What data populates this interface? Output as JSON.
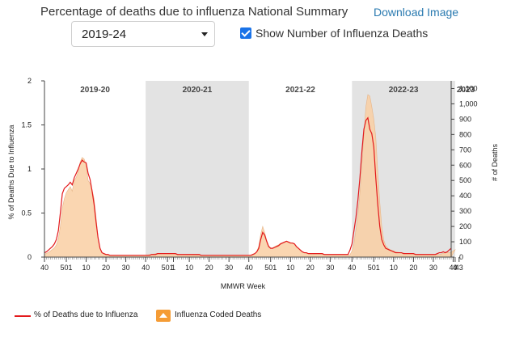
{
  "header": {
    "title": "Percentage of deaths due to influenza National Summary",
    "download_label": "Download Image"
  },
  "season_select": {
    "value": "2019-24"
  },
  "show_deaths_checkbox": {
    "label": "Show Number of Influenza Deaths",
    "checked": true
  },
  "legend": {
    "pct_label": "% of Deaths due to Influenza",
    "deaths_label": "Influenza Coded Deaths"
  },
  "colors": {
    "pct_line": "#e31a1c",
    "deaths_fill": "#f9cfa3",
    "deaths_fill_dark": "#e7b588",
    "shade": "#e3e3e3",
    "legend_swatch": "#f59c35"
  },
  "chart_data": {
    "type": "line",
    "xlabel": "MMWR Week",
    "ylabel": "% of Deaths Due to Influenza",
    "y2label": "# of Deaths",
    "ylim": [
      0,
      2
    ],
    "y2lim": [
      0,
      1150
    ],
    "y_ticks": [
      "0",
      "0.5",
      "1",
      "1.5",
      "2"
    ],
    "y2_ticks": [
      "0",
      "100",
      "200",
      "300",
      "400",
      "500",
      "600",
      "700",
      "800",
      "900",
      "1,000",
      "1,100"
    ],
    "seasons": [
      {
        "label": "2019-20",
        "shaded": false,
        "start_index": 0,
        "end_index": 51
      },
      {
        "label": "2020-21",
        "shaded": true,
        "start_index": 51,
        "end_index": 103
      },
      {
        "label": "2021-22",
        "shaded": false,
        "start_index": 103,
        "end_index": 155
      },
      {
        "label": "2022-23",
        "shaded": true,
        "start_index": 155,
        "end_index": 207
      },
      {
        "label": "2023",
        "shaded": false,
        "start_index": 207,
        "end_index": 210
      }
    ],
    "x_ticks": [
      {
        "index": 0,
        "label": "40"
      },
      {
        "index": 11,
        "label": "501"
      },
      {
        "index": 21,
        "label": "10"
      },
      {
        "index": 31,
        "label": "20"
      },
      {
        "index": 41,
        "label": "30"
      },
      {
        "index": 51,
        "label": "40"
      },
      {
        "index": 62,
        "label": "501"
      },
      {
        "index": 65,
        "label": "1"
      },
      {
        "index": 73,
        "label": "10"
      },
      {
        "index": 83,
        "label": "20"
      },
      {
        "index": 93,
        "label": "30"
      },
      {
        "index": 103,
        "label": "40"
      },
      {
        "index": 114,
        "label": "501"
      },
      {
        "index": 124,
        "label": "10"
      },
      {
        "index": 134,
        "label": "20"
      },
      {
        "index": 144,
        "label": "30"
      },
      {
        "index": 155,
        "label": "40"
      },
      {
        "index": 166,
        "label": "501"
      },
      {
        "index": 176,
        "label": "10"
      },
      {
        "index": 186,
        "label": "20"
      },
      {
        "index": 196,
        "label": "30"
      },
      {
        "index": 206,
        "label": "40"
      },
      {
        "index": 207,
        "label": "4"
      },
      {
        "index": 209,
        "label": "43"
      }
    ],
    "pct_series": [
      0.05,
      0.06,
      0.08,
      0.1,
      0.12,
      0.15,
      0.2,
      0.3,
      0.5,
      0.72,
      0.78,
      0.8,
      0.82,
      0.85,
      0.82,
      0.9,
      0.95,
      1.0,
      1.06,
      1.1,
      1.08,
      1.07,
      0.95,
      0.88,
      0.75,
      0.6,
      0.4,
      0.22,
      0.1,
      0.05,
      0.04,
      0.03,
      0.03,
      0.02,
      0.02,
      0.02,
      0.02,
      0.02,
      0.02,
      0.02,
      0.02,
      0.02,
      0.02,
      0.02,
      0.02,
      0.02,
      0.02,
      0.02,
      0.02,
      0.02,
      0.02,
      0.02,
      0.02,
      0.02,
      0.03,
      0.03,
      0.03,
      0.04,
      0.04,
      0.04,
      0.04,
      0.04,
      0.04,
      0.04,
      0.04,
      0.04,
      0.04,
      0.03,
      0.03,
      0.03,
      0.03,
      0.03,
      0.03,
      0.03,
      0.03,
      0.03,
      0.03,
      0.03,
      0.03,
      0.02,
      0.02,
      0.02,
      0.02,
      0.02,
      0.02,
      0.02,
      0.02,
      0.02,
      0.02,
      0.02,
      0.02,
      0.02,
      0.02,
      0.02,
      0.02,
      0.02,
      0.02,
      0.02,
      0.02,
      0.02,
      0.02,
      0.02,
      0.02,
      0.02,
      0.02,
      0.03,
      0.04,
      0.06,
      0.1,
      0.2,
      0.28,
      0.25,
      0.18,
      0.12,
      0.1,
      0.1,
      0.11,
      0.12,
      0.13,
      0.15,
      0.16,
      0.17,
      0.18,
      0.17,
      0.16,
      0.16,
      0.15,
      0.12,
      0.1,
      0.08,
      0.06,
      0.05,
      0.05,
      0.04,
      0.04,
      0.04,
      0.04,
      0.04,
      0.04,
      0.04,
      0.04,
      0.03,
      0.03,
      0.03,
      0.03,
      0.03,
      0.03,
      0.03,
      0.03,
      0.03,
      0.03,
      0.03,
      0.03,
      0.03,
      0.08,
      0.15,
      0.3,
      0.45,
      0.65,
      0.9,
      1.2,
      1.45,
      1.55,
      1.58,
      1.45,
      1.4,
      1.25,
      0.9,
      0.6,
      0.35,
      0.2,
      0.14,
      0.1,
      0.09,
      0.08,
      0.07,
      0.06,
      0.05,
      0.05,
      0.05,
      0.05,
      0.04,
      0.04,
      0.04,
      0.04,
      0.04,
      0.04,
      0.03,
      0.03,
      0.03,
      0.03,
      0.03,
      0.03,
      0.03,
      0.03,
      0.03,
      0.03,
      0.03,
      0.04,
      0.05,
      0.05,
      0.06,
      0.05,
      0.06,
      0.08,
      0.1
    ],
    "deaths_series": [
      20,
      25,
      30,
      40,
      50,
      60,
      80,
      120,
      200,
      320,
      380,
      420,
      440,
      460,
      430,
      500,
      520,
      560,
      620,
      650,
      640,
      600,
      500,
      480,
      440,
      380,
      260,
      130,
      60,
      30,
      20,
      15,
      12,
      10,
      10,
      10,
      10,
      10,
      10,
      10,
      10,
      10,
      10,
      10,
      10,
      10,
      10,
      10,
      10,
      10,
      10,
      12,
      14,
      16,
      18,
      20,
      22,
      24,
      25,
      25,
      25,
      25,
      25,
      24,
      24,
      23,
      22,
      20,
      18,
      17,
      16,
      15,
      14,
      14,
      14,
      13,
      13,
      12,
      12,
      11,
      11,
      11,
      11,
      10,
      10,
      10,
      10,
      10,
      10,
      10,
      10,
      10,
      10,
      10,
      10,
      10,
      10,
      10,
      10,
      10,
      10,
      10,
      10,
      10,
      10,
      12,
      20,
      35,
      70,
      150,
      200,
      160,
      110,
      75,
      60,
      60,
      68,
      75,
      80,
      90,
      95,
      100,
      105,
      100,
      95,
      92,
      88,
      70,
      55,
      45,
      35,
      28,
      25,
      22,
      20,
      20,
      18,
      18,
      18,
      17,
      17,
      16,
      16,
      15,
      15,
      15,
      15,
      15,
      15,
      15,
      15,
      15,
      15,
      15,
      15,
      40,
      90,
      180,
      280,
      420,
      600,
      800,
      980,
      1060,
      1050,
      980,
      900,
      780,
      560,
      360,
      200,
      110,
      75,
      60,
      50,
      45,
      40,
      35,
      32,
      30,
      28,
      27,
      25,
      24,
      23,
      22,
      21,
      20,
      18,
      18,
      18,
      17,
      17,
      17,
      16,
      16,
      16,
      16,
      16,
      16,
      20,
      25,
      28,
      30,
      28,
      32,
      40,
      48
    ]
  }
}
